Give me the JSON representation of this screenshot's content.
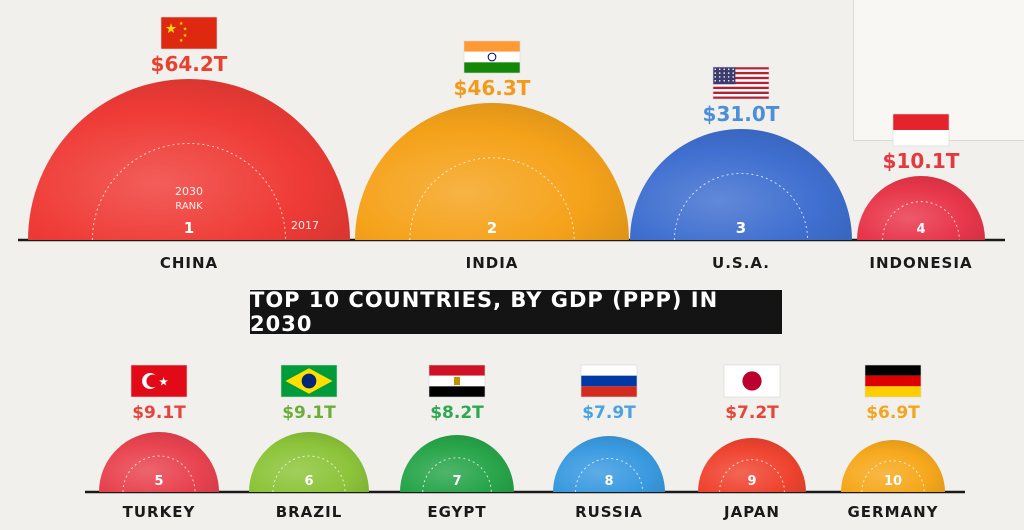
{
  "chart_data": {
    "type": "bar",
    "title": "TOP 10 COUNTRIES, BY GDP (PPP) IN 2030",
    "unit": "$T",
    "rank_label": "2030\nRANK",
    "year_label": "2017",
    "countries": [
      {
        "rank": 1,
        "name": "CHINA",
        "value": 64.2,
        "label": "$64.2T",
        "color": "#ef3b36",
        "label_color": "#e8412f",
        "flag": "china-flag"
      },
      {
        "rank": 2,
        "name": "INDIA",
        "value": 46.3,
        "label": "$46.3T",
        "color": "#f5a21a",
        "label_color": "#f29a1c",
        "flag": "india-flag"
      },
      {
        "rank": 3,
        "name": "U.S.A.",
        "value": 31.0,
        "label": "$31.0T",
        "color": "#3f6fd0",
        "label_color": "#4a8fd8",
        "flag": "usa-flag"
      },
      {
        "rank": 4,
        "name": "INDONESIA",
        "value": 10.1,
        "label": "$10.1T",
        "color": "#e8364a",
        "label_color": "#e33a3f",
        "flag": "indonesia-flag"
      },
      {
        "rank": 5,
        "name": "TURKEY",
        "value": 9.1,
        "label": "$9.1T",
        "color": "#e8434f",
        "label_color": "#e4453f",
        "flag": "turkey-flag"
      },
      {
        "rank": 6,
        "name": "BRAZIL",
        "value": 9.1,
        "label": "$9.1T",
        "color": "#8cc43a",
        "label_color": "#6cae3c",
        "flag": "brazil-flag"
      },
      {
        "rank": 7,
        "name": "EGYPT",
        "value": 8.2,
        "label": "$8.2T",
        "color": "#28a54a",
        "label_color": "#2fa94f",
        "flag": "egypt-flag"
      },
      {
        "rank": 8,
        "name": "RUSSIA",
        "value": 7.9,
        "label": "$7.9T",
        "color": "#3a9ae0",
        "label_color": "#4aa2de",
        "flag": "russia-flag"
      },
      {
        "rank": 9,
        "name": "JAPAN",
        "value": 7.2,
        "label": "$7.2T",
        "color": "#ef4430",
        "label_color": "#e5463a",
        "flag": "japan-flag"
      },
      {
        "rank": 10,
        "name": "GERMANY",
        "value": 6.9,
        "label": "$6.9T",
        "color": "#f6a81c",
        "label_color": "#f2a51f",
        "flag": "germany-flag"
      }
    ]
  }
}
